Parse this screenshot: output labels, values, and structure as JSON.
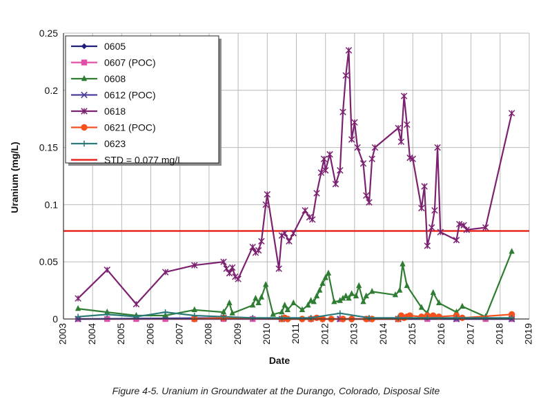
{
  "caption": "Figure 4-5. Uranium in Groundwater at the Durango, Colorado, Disposal Site",
  "chart_data": {
    "type": "line",
    "xlabel": "Date",
    "ylabel": "Uranium (mg/L)",
    "xlim": [
      2003,
      2019
    ],
    "ylim": [
      0,
      0.25
    ],
    "x_ticks": [
      "2003",
      "2004",
      "2005",
      "2006",
      "2007",
      "2008",
      "2009",
      "2010",
      "2011",
      "2012",
      "2013",
      "2014",
      "2015",
      "2016",
      "2017",
      "2018",
      "2019"
    ],
    "y_ticks": [
      "0",
      "0.05",
      "0.1",
      "0.15",
      "0.2",
      "0.25"
    ],
    "grid": true,
    "legend_position": "top-left",
    "reference_line": {
      "name": "STD = 0.077 mg/L",
      "value": 0.077,
      "color": "#e8261e"
    },
    "series": [
      {
        "name": "0605",
        "color": "#1f1f7a",
        "marker": "diamond",
        "points": [
          [
            2003.5,
            0.0
          ],
          [
            2018.4,
            0.0
          ]
        ]
      },
      {
        "name": "0607 (POC)",
        "color": "#e050a8",
        "marker": "square",
        "points": [
          [
            2003.5,
            0.0
          ],
          [
            2004.5,
            0.0
          ],
          [
            2005.5,
            0.0
          ],
          [
            2006.5,
            0.0
          ],
          [
            2007.5,
            0.0
          ],
          [
            2008.5,
            0.0
          ],
          [
            2009.5,
            0.0
          ],
          [
            2010.5,
            0.0
          ],
          [
            2011.5,
            0.0
          ],
          [
            2012.5,
            0.0
          ],
          [
            2013.5,
            0.0
          ],
          [
            2014.5,
            0.0
          ],
          [
            2015.5,
            0.0
          ],
          [
            2016.5,
            0.0
          ],
          [
            2017.5,
            0.0
          ],
          [
            2018.4,
            0.0
          ]
        ]
      },
      {
        "name": "0608",
        "color": "#2e7d32",
        "marker": "triangle",
        "points": [
          [
            2003.5,
            0.009
          ],
          [
            2004.5,
            0.006
          ],
          [
            2005.5,
            0.003
          ],
          [
            2006.5,
            0.003
          ],
          [
            2007.5,
            0.008
          ],
          [
            2008.5,
            0.006
          ],
          [
            2008.7,
            0.014
          ],
          [
            2008.8,
            0.005
          ],
          [
            2009.5,
            0.012
          ],
          [
            2009.6,
            0.018
          ],
          [
            2009.7,
            0.014
          ],
          [
            2009.8,
            0.019
          ],
          [
            2009.95,
            0.03
          ],
          [
            2010.2,
            0.004
          ],
          [
            2010.5,
            0.006
          ],
          [
            2010.6,
            0.012
          ],
          [
            2010.7,
            0.008
          ],
          [
            2010.9,
            0.014
          ],
          [
            2011.2,
            0.008
          ],
          [
            2011.4,
            0.012
          ],
          [
            2011.5,
            0.016
          ],
          [
            2011.6,
            0.015
          ],
          [
            2011.7,
            0.02
          ],
          [
            2011.8,
            0.025
          ],
          [
            2011.9,
            0.031
          ],
          [
            2012.0,
            0.036
          ],
          [
            2012.1,
            0.04
          ],
          [
            2012.3,
            0.015
          ],
          [
            2012.5,
            0.016
          ],
          [
            2012.6,
            0.018
          ],
          [
            2012.7,
            0.02
          ],
          [
            2012.8,
            0.018
          ],
          [
            2012.9,
            0.022
          ],
          [
            2013.05,
            0.02
          ],
          [
            2013.15,
            0.029
          ],
          [
            2013.3,
            0.015
          ],
          [
            2013.4,
            0.02
          ],
          [
            2013.6,
            0.024
          ],
          [
            2014.4,
            0.021
          ],
          [
            2014.55,
            0.025
          ],
          [
            2014.65,
            0.048
          ],
          [
            2014.8,
            0.029
          ],
          [
            2015.3,
            0.01
          ],
          [
            2015.5,
            0.005
          ],
          [
            2015.7,
            0.023
          ],
          [
            2015.9,
            0.014
          ],
          [
            2016.5,
            0.006
          ],
          [
            2016.7,
            0.011
          ],
          [
            2017.5,
            0.002
          ],
          [
            2018.4,
            0.059
          ]
        ]
      },
      {
        "name": "0612 (POC)",
        "color": "#4b3f9e",
        "marker": "x",
        "points": [
          [
            2003.5,
            0.0
          ],
          [
            2008.5,
            0.001
          ],
          [
            2010.5,
            0.0
          ],
          [
            2012.5,
            0.0
          ],
          [
            2014.5,
            0.0
          ],
          [
            2016.5,
            0.0
          ],
          [
            2018.4,
            0.0
          ]
        ]
      },
      {
        "name": "0618",
        "color": "#7b2170",
        "marker": "star",
        "points": [
          [
            2003.5,
            0.018
          ],
          [
            2004.5,
            0.043
          ],
          [
            2005.5,
            0.013
          ],
          [
            2006.5,
            0.041
          ],
          [
            2007.5,
            0.047
          ],
          [
            2008.5,
            0.05
          ],
          [
            2008.6,
            0.044
          ],
          [
            2008.7,
            0.04
          ],
          [
            2008.8,
            0.045
          ],
          [
            2008.9,
            0.037
          ],
          [
            2009.0,
            0.035
          ],
          [
            2009.5,
            0.063
          ],
          [
            2009.6,
            0.058
          ],
          [
            2009.7,
            0.06
          ],
          [
            2009.8,
            0.068
          ],
          [
            2009.95,
            0.1
          ],
          [
            2010.0,
            0.109
          ],
          [
            2010.4,
            0.044
          ],
          [
            2010.5,
            0.073
          ],
          [
            2010.6,
            0.075
          ],
          [
            2010.75,
            0.068
          ],
          [
            2010.9,
            0.075
          ],
          [
            2011.3,
            0.095
          ],
          [
            2011.45,
            0.089
          ],
          [
            2011.55,
            0.087
          ],
          [
            2011.7,
            0.11
          ],
          [
            2011.85,
            0.128
          ],
          [
            2011.95,
            0.14
          ],
          [
            2012.0,
            0.13
          ],
          [
            2012.15,
            0.144
          ],
          [
            2012.35,
            0.118
          ],
          [
            2012.5,
            0.13
          ],
          [
            2012.6,
            0.181
          ],
          [
            2012.7,
            0.213
          ],
          [
            2012.8,
            0.235
          ],
          [
            2012.9,
            0.157
          ],
          [
            2013.0,
            0.172
          ],
          [
            2013.1,
            0.15
          ],
          [
            2013.3,
            0.136
          ],
          [
            2013.4,
            0.108
          ],
          [
            2013.5,
            0.102
          ],
          [
            2013.6,
            0.14
          ],
          [
            2013.7,
            0.15
          ],
          [
            2014.5,
            0.167
          ],
          [
            2014.6,
            0.155
          ],
          [
            2014.7,
            0.195
          ],
          [
            2014.8,
            0.17
          ],
          [
            2014.9,
            0.141
          ],
          [
            2015.0,
            0.14
          ],
          [
            2015.3,
            0.097
          ],
          [
            2015.4,
            0.116
          ],
          [
            2015.5,
            0.064
          ],
          [
            2015.65,
            0.08
          ],
          [
            2015.75,
            0.095
          ],
          [
            2015.85,
            0.15
          ],
          [
            2015.95,
            0.076
          ],
          [
            2016.5,
            0.069
          ],
          [
            2016.6,
            0.083
          ],
          [
            2016.75,
            0.082
          ],
          [
            2016.85,
            0.078
          ],
          [
            2017.5,
            0.08
          ],
          [
            2018.4,
            0.18
          ]
        ]
      },
      {
        "name": "0621 (POC)",
        "color": "#f4511e",
        "marker": "circle",
        "points": [
          [
            2007.5,
            0.0
          ],
          [
            2008.5,
            0.001
          ],
          [
            2010.5,
            0.0
          ],
          [
            2010.6,
            0.001
          ],
          [
            2010.7,
            0.0
          ],
          [
            2011.2,
            0.0
          ],
          [
            2011.5,
            0.0
          ],
          [
            2011.7,
            0.001
          ],
          [
            2011.9,
            0.0
          ],
          [
            2012.2,
            0.0
          ],
          [
            2012.6,
            0.0
          ],
          [
            2012.9,
            0.0
          ],
          [
            2013.4,
            0.0
          ],
          [
            2013.6,
            0.0
          ],
          [
            2014.5,
            0.0
          ],
          [
            2014.6,
            0.003
          ],
          [
            2014.7,
            0.001
          ],
          [
            2014.8,
            0.002
          ],
          [
            2014.9,
            0.003
          ],
          [
            2015.3,
            0.002
          ],
          [
            2015.5,
            0.003
          ],
          [
            2015.7,
            0.003
          ],
          [
            2015.9,
            0.002
          ],
          [
            2016.5,
            0.003
          ],
          [
            2016.7,
            0.001
          ],
          [
            2018.4,
            0.004
          ]
        ]
      },
      {
        "name": "0623",
        "color": "#2a7a7a",
        "marker": "plus",
        "points": [
          [
            2003.5,
            0.002
          ],
          [
            2004.5,
            0.004
          ],
          [
            2005.5,
            0.002
          ],
          [
            2006.5,
            0.006
          ],
          [
            2007.5,
            0.003
          ],
          [
            2008.5,
            0.002
          ],
          [
            2009.5,
            0.001
          ],
          [
            2010.5,
            0.001
          ],
          [
            2011.5,
            0.001
          ],
          [
            2012.5,
            0.005
          ],
          [
            2013.5,
            0.001
          ],
          [
            2014.5,
            0.001
          ],
          [
            2015.5,
            0.001
          ],
          [
            2016.5,
            0.001
          ],
          [
            2017.5,
            0.001
          ],
          [
            2018.4,
            0.001
          ]
        ]
      }
    ]
  }
}
